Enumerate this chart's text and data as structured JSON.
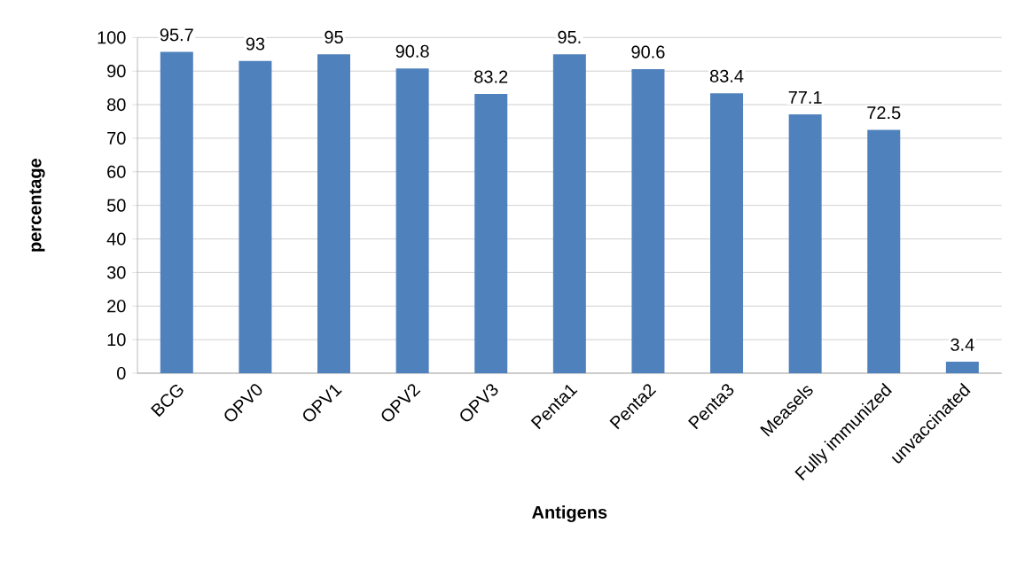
{
  "chart_data": {
    "type": "bar",
    "xlabel": "Antigens",
    "ylabel": "percentage",
    "categories": [
      "BCG",
      "OPV0",
      "OPV1",
      "OPV2",
      "OPV3",
      "Penta1",
      "Penta2",
      "Penta3",
      "Measels",
      "Fully immunized",
      "unvaccinated"
    ],
    "values": [
      95.7,
      93,
      95,
      90.8,
      83.2,
      95,
      90.6,
      83.4,
      77.1,
      72.5,
      3.4
    ],
    "value_labels": [
      "95.7",
      "93",
      "95",
      "90.8",
      "83.2",
      "95.",
      "90.6",
      "83.4",
      "77.1",
      "72.5",
      "3.4"
    ],
    "color": "#4f81bd",
    "ylim": [
      0,
      100
    ],
    "yticks": [
      0,
      10,
      20,
      30,
      40,
      50,
      60,
      70,
      80,
      90,
      100
    ],
    "grid": "y"
  }
}
